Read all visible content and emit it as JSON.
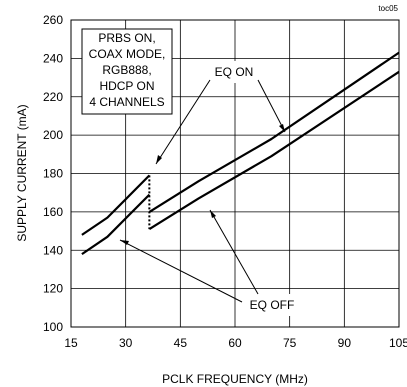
{
  "chart_data": {
    "type": "line",
    "tag": "toc05",
    "xlabel": "PCLK FREQUENCY (MHz)",
    "ylabel": "SUPPLY CURRENT (mA)",
    "xlim": [
      15,
      105
    ],
    "ylim": [
      100,
      260
    ],
    "xticks": [
      15,
      30,
      45,
      60,
      75,
      90,
      105
    ],
    "yticks": [
      100,
      120,
      140,
      160,
      180,
      200,
      220,
      240,
      260
    ],
    "grid": true,
    "series": [
      {
        "name": "EQ ON",
        "x": [
          18,
          25,
          36.5
        ],
        "y": [
          148,
          157,
          179
        ]
      },
      {
        "name": "EQ ON",
        "x": [
          36.5,
          50,
          70,
          105
        ],
        "y": [
          160,
          176,
          198,
          243
        ]
      },
      {
        "name": "EQ OFF",
        "x": [
          18,
          25,
          36.5
        ],
        "y": [
          138,
          147,
          169
        ]
      },
      {
        "name": "EQ OFF",
        "x": [
          36.5,
          50,
          70,
          105
        ],
        "y": [
          151,
          167,
          189,
          233
        ]
      }
    ],
    "annotations": {
      "conditions": [
        "PRBS ON,",
        "COAX MODE,",
        "RGB888,",
        "HDCP ON",
        "4 CHANNELS"
      ],
      "eq_on": "EQ ON",
      "eq_off": "EQ OFF"
    }
  }
}
